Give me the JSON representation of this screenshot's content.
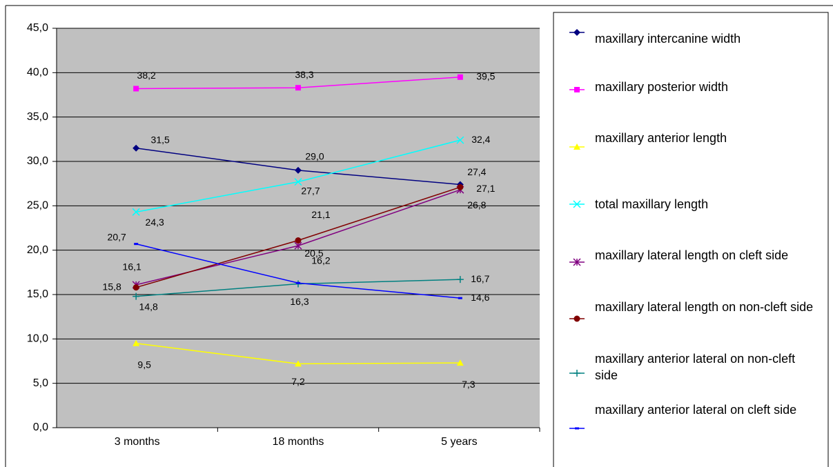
{
  "chart_data": {
    "type": "line",
    "categories": [
      "3 months",
      "18 months",
      "5 years"
    ],
    "ylim": [
      0,
      45
    ],
    "yticks": [
      {
        "value": 0,
        "label": "0,0"
      },
      {
        "value": 5,
        "label": "5,0"
      },
      {
        "value": 10,
        "label": "10,0"
      },
      {
        "value": 15,
        "label": "15,0"
      },
      {
        "value": 20,
        "label": "20,0"
      },
      {
        "value": 25,
        "label": "25,0"
      },
      {
        "value": 30,
        "label": "30,0"
      },
      {
        "value": 35,
        "label": "35,0"
      },
      {
        "value": 40,
        "label": "40,0"
      },
      {
        "value": 45,
        "label": "45,0"
      }
    ],
    "grid": true,
    "legend": "right",
    "series": [
      {
        "name": "maxillary intercanine width",
        "color": "#000080",
        "marker": "diamond",
        "values": [
          31.5,
          29.0,
          27.4
        ],
        "value_labels": [
          "31,5",
          "29,0",
          "27,4"
        ]
      },
      {
        "name": "maxillary posterior width",
        "color": "#ff00ff",
        "marker": "square",
        "values": [
          38.2,
          38.3,
          39.5
        ],
        "value_labels": [
          "38,2",
          "38,3",
          "39,5"
        ]
      },
      {
        "name": "maxillary anterior length",
        "color": "#ffff00",
        "marker": "triangle",
        "values": [
          9.5,
          7.2,
          7.3
        ],
        "value_labels": [
          "9,5",
          "7,2",
          "7,3"
        ]
      },
      {
        "name": "total maxillary length",
        "color": "#00ffff",
        "marker": "x",
        "values": [
          24.3,
          27.7,
          32.4
        ],
        "value_labels": [
          "24,3",
          "27,7",
          "32,4"
        ]
      },
      {
        "name": "maxillary lateral length on cleft side",
        "color": "#800080",
        "marker": "star",
        "values": [
          16.1,
          20.5,
          26.8
        ],
        "value_labels": [
          "16,1",
          "20,5",
          "26,8"
        ]
      },
      {
        "name": "maxillary lateral length on non-cleft side",
        "color": "#800000",
        "marker": "circle",
        "values": [
          15.8,
          21.1,
          27.1
        ],
        "value_labels": [
          "15,8",
          "21,1",
          "27,1"
        ]
      },
      {
        "name": "maxillary anterior lateral on non-cleft side",
        "color": "#008080",
        "marker": "plus",
        "values": [
          14.8,
          16.2,
          16.7
        ],
        "value_labels": [
          "14,8",
          "16,2",
          "16,7"
        ]
      },
      {
        "name": "maxillary anterior lateral on cleft side",
        "color": "#0000ff",
        "marker": "dash",
        "values": [
          20.7,
          16.3,
          14.6
        ],
        "value_labels": [
          "20,7",
          "16,3",
          "14,6"
        ]
      }
    ]
  }
}
